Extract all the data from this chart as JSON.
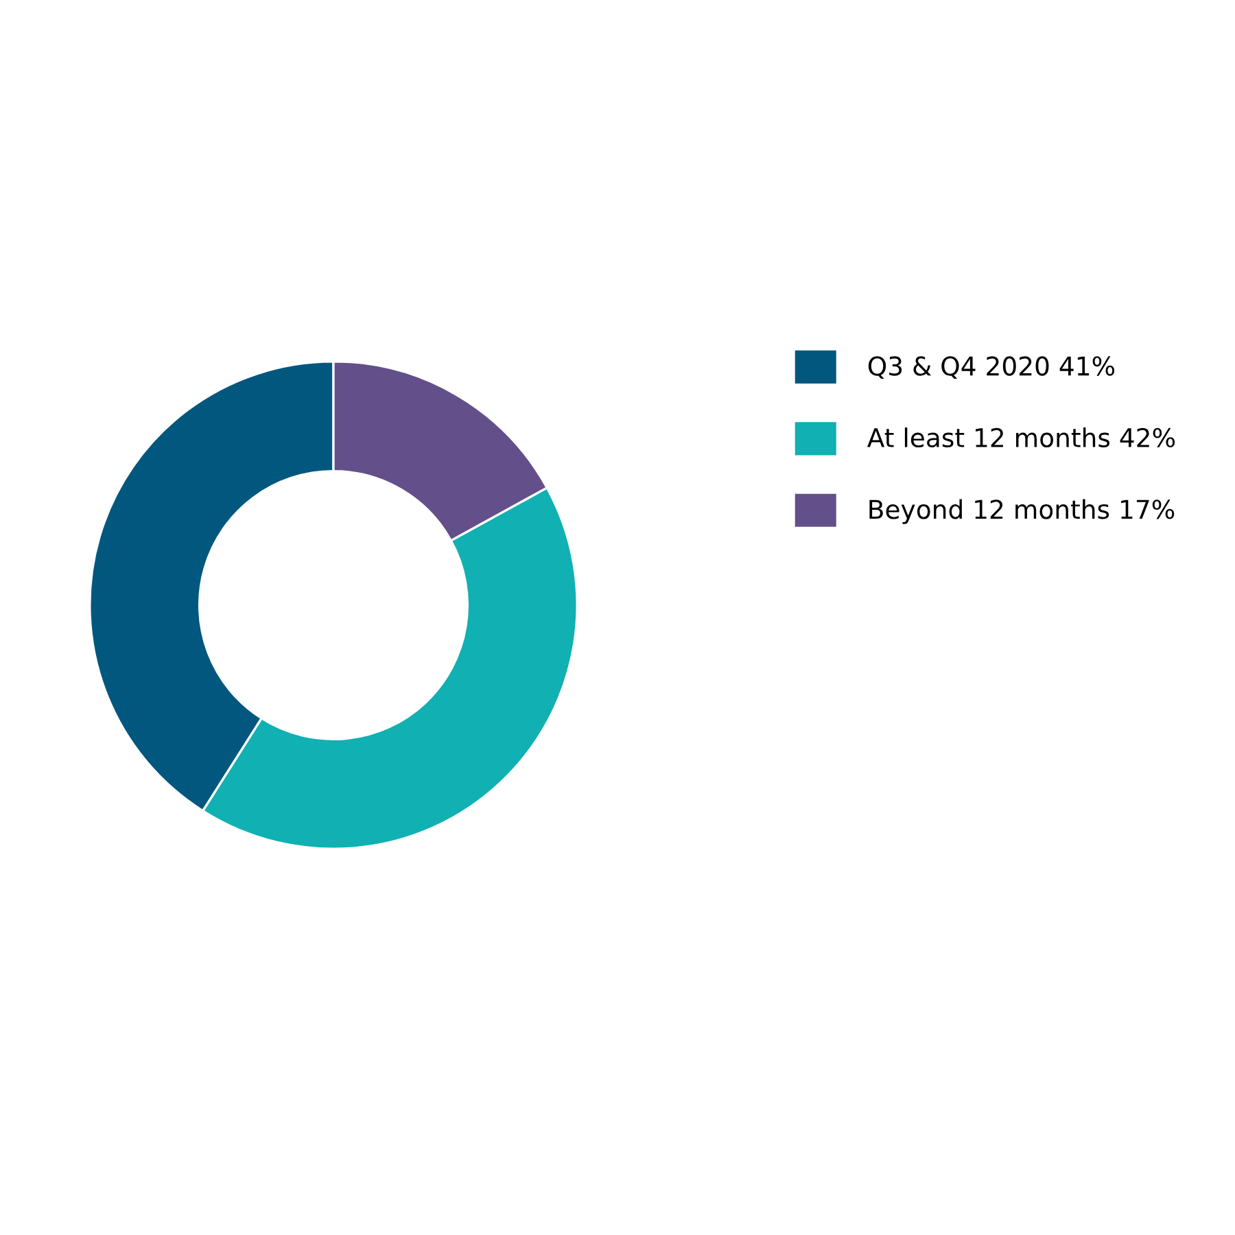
{
  "chart_data": {
    "type": "donut",
    "categories": [
      "Q3 & Q4 2020",
      "At least 12 months",
      "Beyond 12 months"
    ],
    "values": [
      41,
      42,
      17
    ],
    "value_labels": [
      "41%",
      "42%",
      "17%"
    ],
    "colors": [
      "#02577f",
      "#10b0b3",
      "#634f8a"
    ],
    "legend": "right"
  }
}
